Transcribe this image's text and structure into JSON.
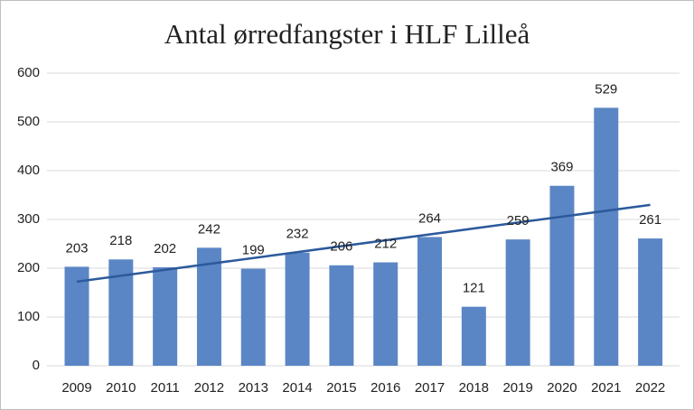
{
  "chart_data": {
    "type": "bar",
    "title": "Antal ørredfangster i HLF Lilleå",
    "categories": [
      "2009",
      "2010",
      "2011",
      "2012",
      "2013",
      "2014",
      "2015",
      "2016",
      "2017",
      "2018",
      "2019",
      "2020",
      "2021",
      "2022"
    ],
    "values": [
      203,
      218,
      202,
      242,
      199,
      232,
      206,
      212,
      264,
      121,
      259,
      369,
      529,
      261
    ],
    "color": "#5b86c5",
    "trendline": "linear",
    "trendline_color": "#2c5a9c",
    "ylim": [
      0,
      600
    ],
    "yticks": [
      0,
      100,
      200,
      300,
      400,
      500,
      600
    ],
    "grid": true
  }
}
